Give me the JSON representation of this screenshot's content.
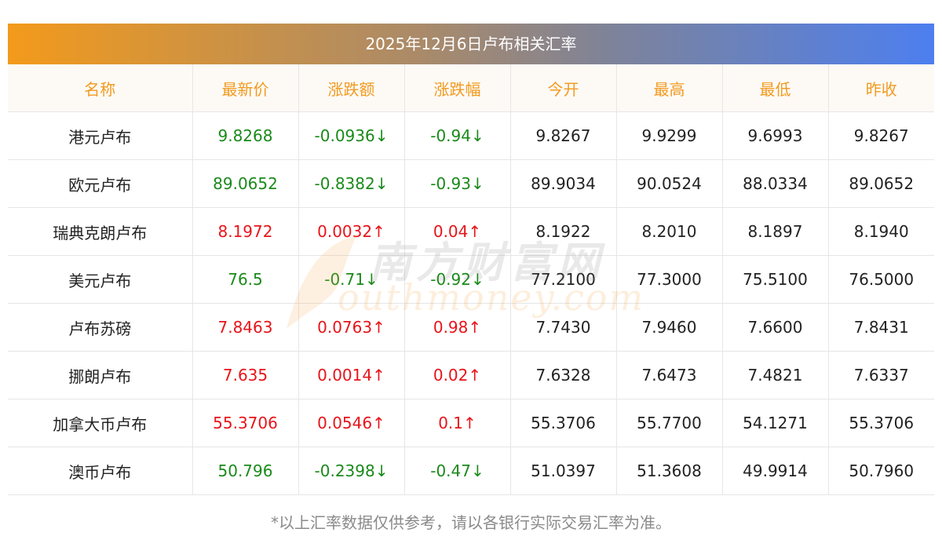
{
  "title": "2025年12月6日卢布相关汇率",
  "headers": [
    "名称",
    "最新价",
    "涨跌额",
    "涨跌幅",
    "今开",
    "最高",
    "最低",
    "昨收"
  ],
  "rows": [
    {
      "name": "港元卢布",
      "latest": "9.8268",
      "change": "-0.0936↓",
      "pct": "-0.94↓",
      "open": "9.8267",
      "high": "9.9299",
      "low": "9.6993",
      "prev": "9.8267",
      "dir": "down"
    },
    {
      "name": "欧元卢布",
      "latest": "89.0652",
      "change": "-0.8382↓",
      "pct": "-0.93↓",
      "open": "89.9034",
      "high": "90.0524",
      "low": "88.0334",
      "prev": "89.0652",
      "dir": "down"
    },
    {
      "name": "瑞典克朗卢布",
      "latest": "8.1972",
      "change": "0.0032↑",
      "pct": "0.04↑",
      "open": "8.1922",
      "high": "8.2010",
      "low": "8.1897",
      "prev": "8.1940",
      "dir": "up"
    },
    {
      "name": "美元卢布",
      "latest": "76.5",
      "change": "-0.71↓",
      "pct": "-0.92↓",
      "open": "77.2100",
      "high": "77.3000",
      "low": "75.5100",
      "prev": "76.5000",
      "dir": "down"
    },
    {
      "name": "卢布苏磅",
      "latest": "7.8463",
      "change": "0.0763↑",
      "pct": "0.98↑",
      "open": "7.7430",
      "high": "7.9460",
      "low": "7.6600",
      "prev": "7.8431",
      "dir": "up"
    },
    {
      "name": "挪朗卢布",
      "latest": "7.635",
      "change": "0.0014↑",
      "pct": "0.02↑",
      "open": "7.6328",
      "high": "7.6473",
      "low": "7.4821",
      "prev": "7.6337",
      "dir": "up"
    },
    {
      "name": "加拿大币卢布",
      "latest": "55.3706",
      "change": "0.0546↑",
      "pct": "0.1↑",
      "open": "55.3706",
      "high": "55.7700",
      "low": "54.1271",
      "prev": "55.3706",
      "dir": "up"
    },
    {
      "name": "澳币卢布",
      "latest": "50.796",
      "change": "-0.2398↓",
      "pct": "-0.47↓",
      "open": "51.0397",
      "high": "51.3608",
      "low": "49.9914",
      "prev": "50.7960",
      "dir": "down"
    }
  ],
  "watermark": {
    "cn": "南方财富网",
    "en": "outhmoney.com"
  },
  "footnote": "*以上汇率数据仅供参考，请以各银行实际交易汇率为准。",
  "colors": {
    "up": "#e8141a",
    "down": "#1a8a1a",
    "header_text": "#f29a1f",
    "gradient_start": "#f39a1b",
    "gradient_end": "#4d7ff0"
  }
}
